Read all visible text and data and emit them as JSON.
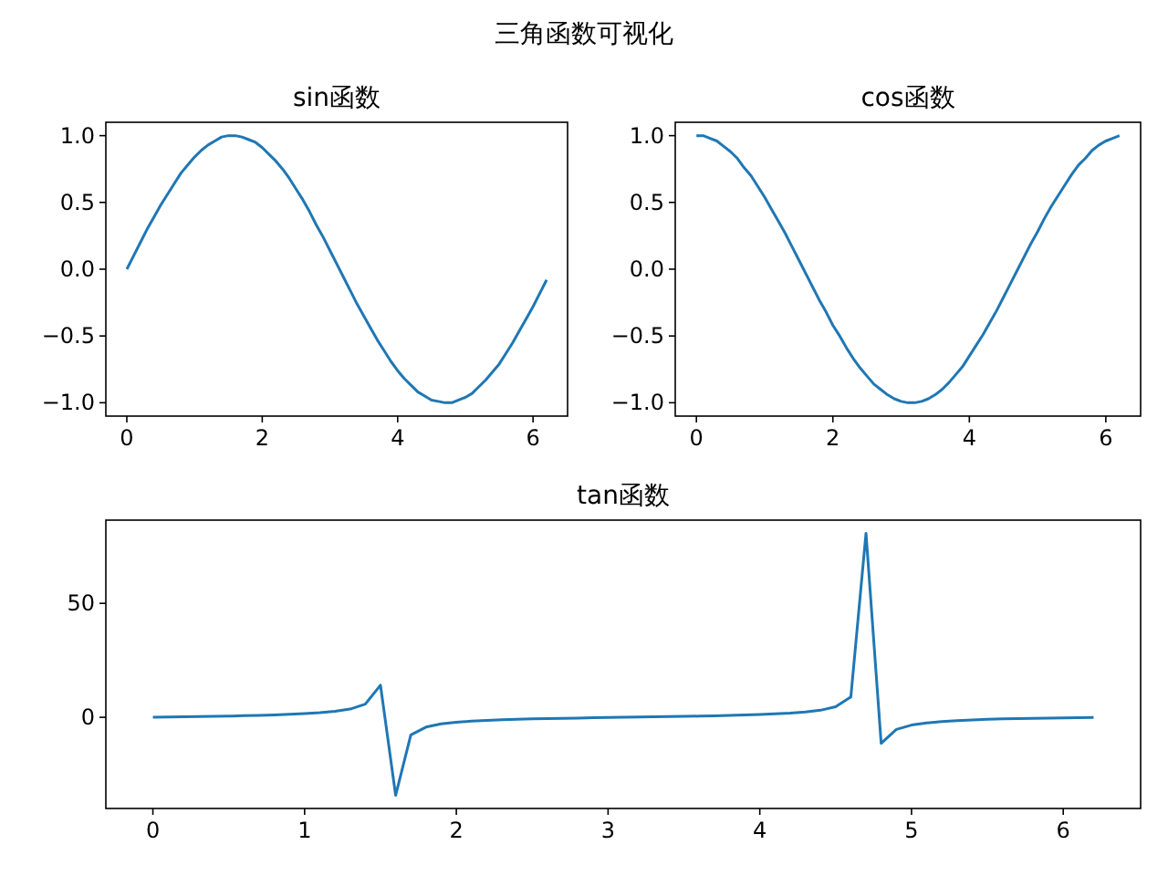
{
  "chart_data": [
    {
      "type": "line",
      "title": "sin函数",
      "annotations": [
        "三角函数可视化"
      ],
      "x": [
        0,
        0.1,
        0.2,
        0.3,
        0.4,
        0.5,
        0.6,
        0.7,
        0.8,
        0.9,
        1.0,
        1.1,
        1.2,
        1.3,
        1.4,
        1.5,
        1.6,
        1.7,
        1.8,
        1.9,
        2.0,
        2.1,
        2.2,
        2.3,
        2.4,
        2.5,
        2.6,
        2.7,
        2.8,
        2.9,
        3.0,
        3.1,
        3.2,
        3.3,
        3.4,
        3.5,
        3.6,
        3.7,
        3.8,
        3.9,
        4.0,
        4.1,
        4.2,
        4.3,
        4.4,
        4.5,
        4.6,
        4.7,
        4.8,
        4.9,
        5.0,
        5.1,
        5.2,
        5.3,
        5.4,
        5.5,
        5.6,
        5.7,
        5.8,
        5.9,
        6.0,
        6.1,
        6.2
      ],
      "series": [
        {
          "color": "#1f77b4",
          "values": [
            0,
            0.1,
            0.2,
            0.3,
            0.39,
            0.48,
            0.56,
            0.64,
            0.72,
            0.78,
            0.84,
            0.89,
            0.93,
            0.96,
            0.99,
            1.0,
            1.0,
            0.99,
            0.97,
            0.95,
            0.91,
            0.86,
            0.81,
            0.75,
            0.68,
            0.6,
            0.52,
            0.43,
            0.33,
            0.24,
            0.14,
            0.04,
            -0.06,
            -0.16,
            -0.26,
            -0.35,
            -0.44,
            -0.53,
            -0.61,
            -0.69,
            -0.76,
            -0.82,
            -0.87,
            -0.92,
            -0.95,
            -0.98,
            -0.99,
            -1.0,
            -1.0,
            -0.98,
            -0.96,
            -0.93,
            -0.88,
            -0.83,
            -0.77,
            -0.71,
            -0.63,
            -0.55,
            -0.46,
            -0.37,
            -0.28,
            -0.18,
            -0.08
          ]
        }
      ],
      "xlim": [
        -0.31,
        6.51
      ],
      "ylim": [
        -1.1,
        1.1
      ],
      "xticks": [
        0,
        2,
        4,
        6
      ],
      "yticks": [
        {
          "value": -1,
          "label": "−1.0"
        },
        {
          "value": -0.5,
          "label": "−0.5"
        },
        {
          "value": 0,
          "label": "0.0"
        },
        {
          "value": 0.5,
          "label": "0.5"
        },
        {
          "value": 1,
          "label": "1.0"
        }
      ]
    },
    {
      "type": "line",
      "title": "cos函数",
      "x": [
        0,
        0.1,
        0.2,
        0.3,
        0.4,
        0.5,
        0.6,
        0.7,
        0.8,
        0.9,
        1.0,
        1.1,
        1.2,
        1.3,
        1.4,
        1.5,
        1.6,
        1.7,
        1.8,
        1.9,
        2.0,
        2.1,
        2.2,
        2.3,
        2.4,
        2.5,
        2.6,
        2.7,
        2.8,
        2.9,
        3.0,
        3.1,
        3.2,
        3.3,
        3.4,
        3.5,
        3.6,
        3.7,
        3.8,
        3.9,
        4.0,
        4.1,
        4.2,
        4.3,
        4.4,
        4.5,
        4.6,
        4.7,
        4.8,
        4.9,
        5.0,
        5.1,
        5.2,
        5.3,
        5.4,
        5.5,
        5.6,
        5.7,
        5.8,
        5.9,
        6.0,
        6.1,
        6.2
      ],
      "series": [
        {
          "color": "#1f77b4",
          "values": [
            1.0,
            1.0,
            0.98,
            0.96,
            0.92,
            0.88,
            0.83,
            0.76,
            0.7,
            0.62,
            0.54,
            0.45,
            0.36,
            0.27,
            0.17,
            0.07,
            -0.03,
            -0.13,
            -0.23,
            -0.32,
            -0.42,
            -0.5,
            -0.59,
            -0.67,
            -0.74,
            -0.8,
            -0.86,
            -0.9,
            -0.94,
            -0.97,
            -0.99,
            -1.0,
            -1.0,
            -0.99,
            -0.97,
            -0.94,
            -0.9,
            -0.85,
            -0.79,
            -0.73,
            -0.65,
            -0.57,
            -0.49,
            -0.4,
            -0.31,
            -0.21,
            -0.11,
            -0.01,
            0.09,
            0.19,
            0.28,
            0.38,
            0.47,
            0.55,
            0.63,
            0.71,
            0.78,
            0.83,
            0.89,
            0.93,
            0.96,
            0.98,
            1.0
          ]
        }
      ],
      "xlim": [
        -0.31,
        6.51
      ],
      "ylim": [
        -1.1,
        1.1
      ],
      "xticks": [
        0,
        2,
        4,
        6
      ],
      "yticks": [
        {
          "value": -1,
          "label": "−1.0"
        },
        {
          "value": -0.5,
          "label": "−0.5"
        },
        {
          "value": 0,
          "label": "0.0"
        },
        {
          "value": 0.5,
          "label": "0.5"
        },
        {
          "value": 1,
          "label": "1.0"
        }
      ]
    },
    {
      "type": "line",
      "title": "tan函数",
      "x": [
        0,
        0.1,
        0.2,
        0.3,
        0.4,
        0.5,
        0.6,
        0.7,
        0.8,
        0.9,
        1.0,
        1.1,
        1.2,
        1.3,
        1.4,
        1.5,
        1.6,
        1.7,
        1.8,
        1.9,
        2.0,
        2.1,
        2.2,
        2.3,
        2.4,
        2.5,
        2.6,
        2.7,
        2.8,
        2.9,
        3.0,
        3.1,
        3.2,
        3.3,
        3.4,
        3.5,
        3.6,
        3.7,
        3.8,
        3.9,
        4.0,
        4.1,
        4.2,
        4.3,
        4.4,
        4.5,
        4.6,
        4.7,
        4.8,
        4.9,
        5.0,
        5.1,
        5.2,
        5.3,
        5.4,
        5.5,
        5.6,
        5.7,
        5.8,
        5.9,
        6.0,
        6.1,
        6.2
      ],
      "series": [
        {
          "color": "#1f77b4",
          "values": [
            0,
            0.1,
            0.2,
            0.3,
            0.4,
            0.5,
            0.7,
            0.8,
            1.0,
            1.3,
            1.6,
            2.0,
            2.6,
            3.6,
            5.8,
            14.1,
            -34.2,
            -7.7,
            -4.3,
            -2.9,
            -2.2,
            -1.7,
            -1.4,
            -1.1,
            -0.9,
            -0.7,
            -0.6,
            -0.5,
            -0.4,
            -0.2,
            -0.1,
            0.0,
            0.1,
            0.2,
            0.3,
            0.4,
            0.5,
            0.6,
            0.8,
            1.0,
            1.2,
            1.5,
            1.8,
            2.3,
            3.1,
            4.6,
            8.9,
            80.7,
            -11.4,
            -5.3,
            -3.4,
            -2.5,
            -1.9,
            -1.5,
            -1.2,
            -0.9,
            -0.7,
            -0.6,
            -0.5,
            -0.4,
            -0.3,
            -0.2,
            -0.1
          ]
        }
      ],
      "xlim": [
        -0.31,
        6.51
      ],
      "ylim": [
        -40,
        86.5
      ],
      "xticks": [
        0,
        1,
        2,
        3,
        4,
        5,
        6
      ],
      "yticks": [
        0,
        50
      ]
    }
  ]
}
